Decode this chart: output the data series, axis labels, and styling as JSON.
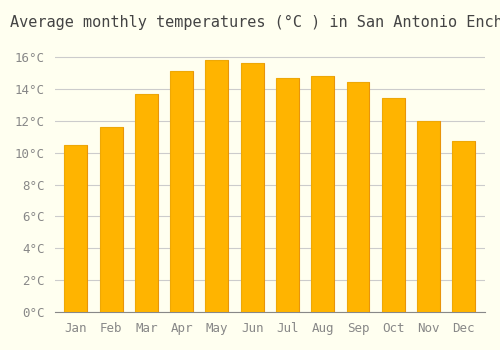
{
  "title": "Average monthly temperatures (°C ) in San Antonio Enchisi",
  "months": [
    "Jan",
    "Feb",
    "Mar",
    "Apr",
    "May",
    "Jun",
    "Jul",
    "Aug",
    "Sep",
    "Oct",
    "Nov",
    "Dec"
  ],
  "values": [
    10.5,
    11.6,
    13.7,
    15.1,
    15.8,
    15.6,
    14.7,
    14.8,
    14.4,
    13.4,
    12.0,
    10.7
  ],
  "bar_color": "#FFA500",
  "bar_edge_color": "#E8940A",
  "background_color": "#FFFFF0",
  "grid_color": "#CCCCCC",
  "title_fontsize": 11,
  "tick_fontsize": 9,
  "ylim": [
    0,
    17
  ],
  "yticks": [
    0,
    2,
    4,
    6,
    8,
    10,
    12,
    14,
    16
  ]
}
